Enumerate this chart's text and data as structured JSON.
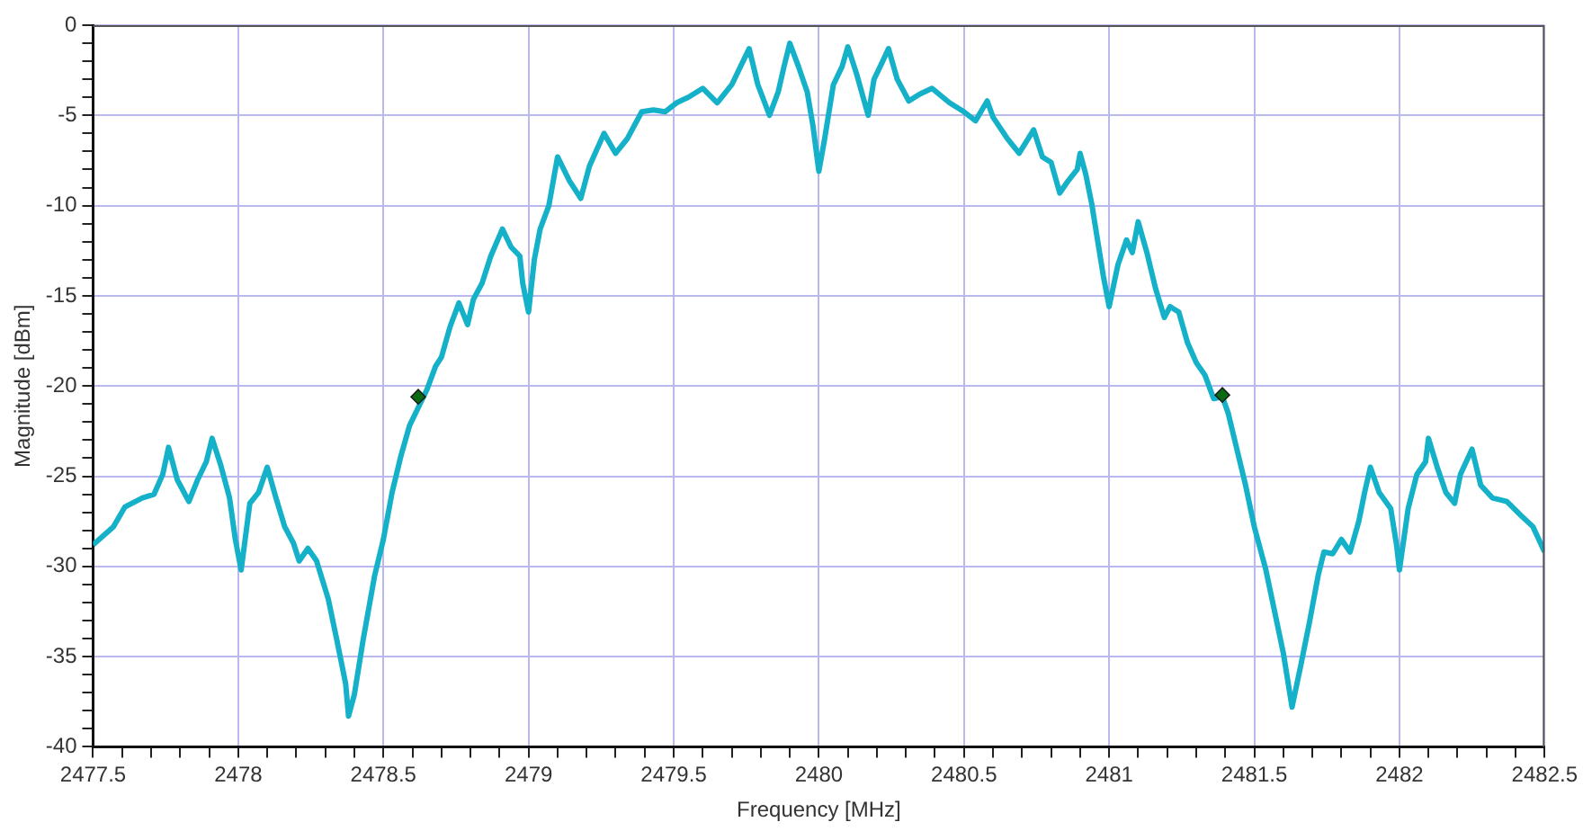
{
  "chart_data": {
    "type": "line",
    "xlabel": "Frequency [MHz]",
    "ylabel": "Magnitude [dBm]",
    "xlim": [
      2477.5,
      2482.5
    ],
    "xticks": [
      2477.5,
      {
        "value": 2477.6,
        "label": null
      },
      {
        "value": 2477.7,
        "label": null
      },
      {
        "value": 2477.8,
        "label": null
      },
      {
        "value": 2477.9,
        "label": null
      },
      2478,
      {
        "value": 2478.1,
        "label": null
      },
      {
        "value": 2478.2,
        "label": null
      },
      {
        "value": 2478.3,
        "label": null
      },
      {
        "value": 2478.4,
        "label": null
      },
      2478.5,
      {
        "value": 2478.6,
        "label": null
      },
      {
        "value": 2478.7,
        "label": null
      },
      {
        "value": 2478.8,
        "label": null
      },
      {
        "value": 2478.9,
        "label": null
      },
      2479,
      {
        "value": 2479.1,
        "label": null
      },
      {
        "value": 2479.2,
        "label": null
      },
      {
        "value": 2479.3,
        "label": null
      },
      {
        "value": 2479.4,
        "label": null
      },
      2479.5,
      {
        "value": 2479.6,
        "label": null
      },
      {
        "value": 2479.7,
        "label": null
      },
      {
        "value": 2479.8,
        "label": null
      },
      {
        "value": 2479.9,
        "label": null
      },
      2480,
      {
        "value": 2480.1,
        "label": null
      },
      {
        "value": 2480.2,
        "label": null
      },
      {
        "value": 2480.3,
        "label": null
      },
      {
        "value": 2480.4,
        "label": null
      },
      2480.5,
      {
        "value": 2480.6,
        "label": null
      },
      {
        "value": 2480.7,
        "label": null
      },
      {
        "value": 2480.8,
        "label": null
      },
      {
        "value": 2480.9,
        "label": null
      },
      2481,
      {
        "value": 2481.1,
        "label": null
      },
      {
        "value": 2481.2,
        "label": null
      },
      {
        "value": 2481.3,
        "label": null
      },
      {
        "value": 2481.4,
        "label": null
      },
      2481.5,
      {
        "value": 2481.6,
        "label": null
      },
      {
        "value": 2481.7,
        "label": null
      },
      {
        "value": 2481.8,
        "label": null
      },
      {
        "value": 2481.9,
        "label": null
      },
      2482,
      {
        "value": 2482.1,
        "label": null
      },
      {
        "value": 2482.2,
        "label": null
      },
      {
        "value": 2482.3,
        "label": null
      },
      {
        "value": 2482.4,
        "label": null
      },
      2482.5
    ],
    "ylim": [
      -40,
      0
    ],
    "yticks": [
      -40,
      {
        "value": -39,
        "label": null
      },
      {
        "value": -38,
        "label": null
      },
      {
        "value": -37,
        "label": null
      },
      {
        "value": -36,
        "label": null
      },
      -35,
      {
        "value": -34,
        "label": null
      },
      {
        "value": -33,
        "label": null
      },
      {
        "value": -32,
        "label": null
      },
      {
        "value": -31,
        "label": null
      },
      -30,
      {
        "value": -29,
        "label": null
      },
      {
        "value": -28,
        "label": null
      },
      {
        "value": -27,
        "label": null
      },
      {
        "value": -26,
        "label": null
      },
      -25,
      {
        "value": -24,
        "label": null
      },
      {
        "value": -23,
        "label": null
      },
      {
        "value": -22,
        "label": null
      },
      {
        "value": -21,
        "label": null
      },
      -20,
      {
        "value": -19,
        "label": null
      },
      {
        "value": -18,
        "label": null
      },
      {
        "value": -17,
        "label": null
      },
      {
        "value": -16,
        "label": null
      },
      -15,
      {
        "value": -14,
        "label": null
      },
      {
        "value": -13,
        "label": null
      },
      {
        "value": -12,
        "label": null
      },
      {
        "value": -11,
        "label": null
      },
      -10,
      {
        "value": -9,
        "label": null
      },
      {
        "value": -8,
        "label": null
      },
      {
        "value": -7,
        "label": null
      },
      {
        "value": -6,
        "label": null
      },
      -5,
      {
        "value": -4,
        "label": null
      },
      {
        "value": -3,
        "label": null
      },
      {
        "value": -2,
        "label": null
      },
      {
        "value": -1,
        "label": null
      },
      0
    ],
    "grid": true,
    "marker": "none",
    "line_style": "solid",
    "series": [
      {
        "color": "#14b1c9",
        "x": [
          2477.5,
          2477.57,
          2477.61,
          2477.67,
          2477.71,
          2477.74,
          2477.76,
          2477.79,
          2477.83,
          2477.86,
          2477.89,
          2477.91,
          2477.94,
          2477.97,
          2477.99,
          2478.01,
          2478.04,
          2478.07,
          2478.1,
          2478.13,
          2478.16,
          2478.19,
          2478.21,
          2478.24,
          2478.27,
          2478.31,
          2478.34,
          2478.37,
          2478.38,
          2478.4,
          2478.43,
          2478.47,
          2478.5,
          2478.53,
          2478.56,
          2478.59,
          2478.62,
          2478.65,
          2478.68,
          2478.7,
          2478.73,
          2478.76,
          2478.79,
          2478.81,
          2478.84,
          2478.87,
          2478.91,
          2478.94,
          2478.97,
          2478.98,
          2479.0,
          2479.02,
          2479.04,
          2479.07,
          2479.1,
          2479.14,
          2479.18,
          2479.21,
          2479.26,
          2479.3,
          2479.34,
          2479.39,
          2479.43,
          2479.47,
          2479.51,
          2479.55,
          2479.6,
          2479.65,
          2479.7,
          2479.73,
          2479.76,
          2479.79,
          2479.83,
          2479.86,
          2479.88,
          2479.9,
          2479.93,
          2479.96,
          2479.98,
          2480.0,
          2480.02,
          2480.05,
          2480.08,
          2480.1,
          2480.13,
          2480.17,
          2480.19,
          2480.22,
          2480.24,
          2480.27,
          2480.31,
          2480.35,
          2480.39,
          2480.45,
          2480.5,
          2480.54,
          2480.58,
          2480.6,
          2480.65,
          2480.69,
          2480.74,
          2480.77,
          2480.8,
          2480.83,
          2480.86,
          2480.89,
          2480.9,
          2480.92,
          2480.94,
          2480.96,
          2480.98,
          2481.0,
          2481.03,
          2481.06,
          2481.08,
          2481.1,
          2481.13,
          2481.16,
          2481.19,
          2481.21,
          2481.24,
          2481.27,
          2481.3,
          2481.33,
          2481.36,
          2481.39,
          2481.41,
          2481.44,
          2481.47,
          2481.5,
          2481.54,
          2481.57,
          2481.6,
          2481.63,
          2481.66,
          2481.69,
          2481.72,
          2481.74,
          2481.77,
          2481.8,
          2481.83,
          2481.86,
          2481.88,
          2481.9,
          2481.93,
          2481.97,
          2481.99,
          2482.0,
          2482.03,
          2482.06,
          2482.09,
          2482.1,
          2482.13,
          2482.16,
          2482.19,
          2482.21,
          2482.25,
          2482.28,
          2482.32,
          2482.37,
          2482.42,
          2482.46,
          2482.5
        ],
        "values": [
          -28.8,
          -27.8,
          -26.7,
          -26.2,
          -26.0,
          -24.9,
          -23.4,
          -25.2,
          -26.4,
          -25.2,
          -24.2,
          -22.9,
          -24.4,
          -26.2,
          -28.5,
          -30.2,
          -26.5,
          -25.9,
          -24.5,
          -26.2,
          -27.8,
          -28.7,
          -29.7,
          -29.0,
          -29.7,
          -31.8,
          -34.1,
          -36.5,
          -38.3,
          -37.1,
          -34.1,
          -30.5,
          -28.5,
          -25.9,
          -23.9,
          -22.2,
          -21.2,
          -20.2,
          -18.9,
          -18.4,
          -16.7,
          -15.4,
          -16.6,
          -15.2,
          -14.3,
          -12.8,
          -11.3,
          -12.3,
          -12.8,
          -14.3,
          -15.9,
          -13.0,
          -11.3,
          -10.0,
          -7.3,
          -8.6,
          -9.6,
          -7.8,
          -6.0,
          -7.1,
          -6.3,
          -4.8,
          -4.7,
          -4.8,
          -4.3,
          -4.0,
          -3.5,
          -4.3,
          -3.3,
          -2.3,
          -1.3,
          -3.3,
          -5.0,
          -3.7,
          -2.3,
          -1.0,
          -2.3,
          -3.7,
          -5.6,
          -8.1,
          -6.3,
          -3.3,
          -2.3,
          -1.2,
          -2.7,
          -5.0,
          -3.0,
          -2.0,
          -1.3,
          -3.0,
          -4.2,
          -3.8,
          -3.5,
          -4.3,
          -4.8,
          -5.3,
          -4.2,
          -5.1,
          -6.3,
          -7.1,
          -5.8,
          -7.3,
          -7.6,
          -9.3,
          -8.6,
          -8.0,
          -7.1,
          -8.3,
          -9.9,
          -11.9,
          -13.9,
          -15.6,
          -13.3,
          -11.9,
          -12.6,
          -10.9,
          -12.6,
          -14.6,
          -16.2,
          -15.6,
          -15.9,
          -17.6,
          -18.7,
          -19.4,
          -20.7,
          -20.6,
          -21.5,
          -23.5,
          -25.5,
          -27.8,
          -30.2,
          -32.5,
          -34.8,
          -37.8,
          -35.5,
          -33.1,
          -30.5,
          -29.2,
          -29.3,
          -28.5,
          -29.2,
          -27.5,
          -25.9,
          -24.5,
          -25.9,
          -26.8,
          -28.8,
          -30.2,
          -26.8,
          -24.9,
          -24.2,
          -22.9,
          -24.5,
          -25.9,
          -26.5,
          -24.9,
          -23.5,
          -25.5,
          -26.2,
          -26.4,
          -27.2,
          -27.8,
          -29.2
        ]
      },
      {
        "type": "scatter",
        "marker": "diamond",
        "color": "#0b6b12",
        "x": [
          2478.62,
          2481.39
        ],
        "values": [
          -20.6,
          -20.5
        ]
      }
    ]
  }
}
